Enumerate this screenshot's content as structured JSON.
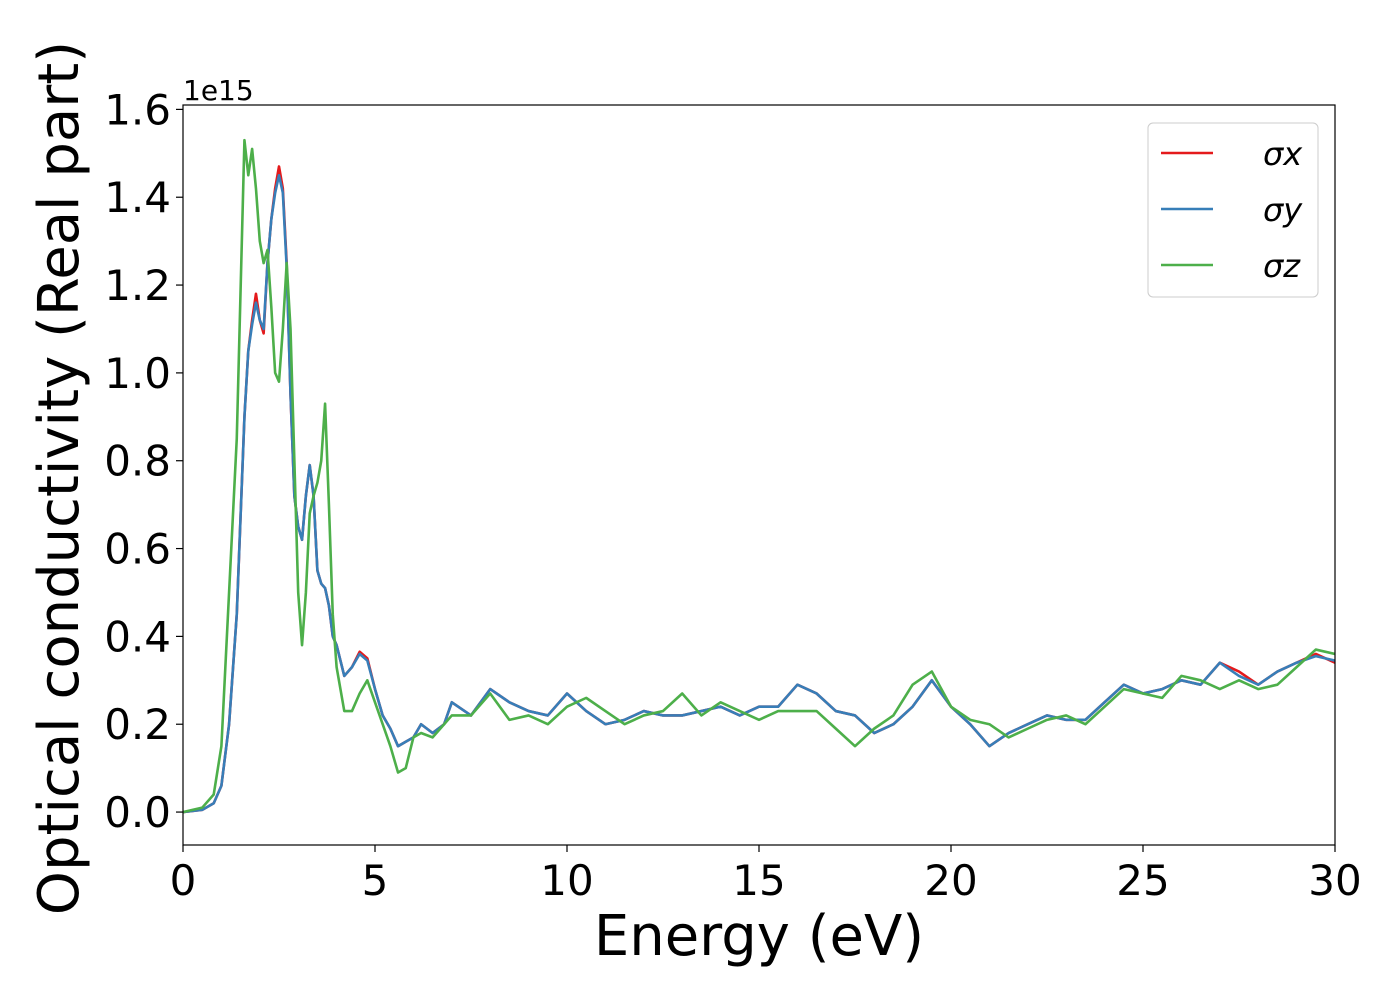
{
  "chart_data": {
    "type": "line",
    "xlabel": "Energy (eV)",
    "ylabel": "Optical conductivity (Real part)",
    "y_offset_label": "1e15",
    "xlim": [
      0,
      30
    ],
    "ylim": [
      -0.075,
      1.61
    ],
    "xticks": [
      0,
      5,
      10,
      15,
      20,
      25,
      30
    ],
    "yticks": [
      {
        "value": 0,
        "label": "0.0"
      },
      0.2,
      0.4,
      0.6,
      0.8,
      {
        "value": 1,
        "label": "1.0"
      },
      1.2,
      1.4,
      1.6
    ],
    "legend": "upper right",
    "x": [
      0,
      0.5,
      0.8,
      1.0,
      1.2,
      1.4,
      1.6,
      1.7,
      1.8,
      1.9,
      2.0,
      2.1,
      2.2,
      2.3,
      2.4,
      2.5,
      2.6,
      2.7,
      2.8,
      2.9,
      3.0,
      3.1,
      3.2,
      3.3,
      3.4,
      3.5,
      3.6,
      3.7,
      3.8,
      3.9,
      4.0,
      4.2,
      4.4,
      4.6,
      4.8,
      5.0,
      5.2,
      5.4,
      5.6,
      5.8,
      6.0,
      6.2,
      6.5,
      6.8,
      7.0,
      7.5,
      8.0,
      8.5,
      9.0,
      9.5,
      10,
      10.5,
      11,
      11.5,
      12,
      12.5,
      13,
      13.5,
      14,
      14.5,
      15,
      15.5,
      16,
      16.5,
      17,
      17.5,
      18,
      18.5,
      19,
      19.5,
      20,
      20.5,
      21,
      21.5,
      22,
      22.5,
      23,
      23.5,
      24,
      24.5,
      25,
      25.5,
      26,
      26.5,
      27,
      27.5,
      28,
      28.5,
      29,
      29.5,
      30
    ],
    "series": [
      {
        "name": "σx",
        "color": "#e41a1c",
        "values": [
          0,
          0.005,
          0.02,
          0.06,
          0.2,
          0.45,
          0.9,
          1.05,
          1.12,
          1.18,
          1.12,
          1.09,
          1.25,
          1.35,
          1.42,
          1.47,
          1.42,
          1.25,
          0.95,
          0.72,
          0.65,
          0.62,
          0.72,
          0.79,
          0.72,
          0.55,
          0.52,
          0.51,
          0.47,
          0.4,
          0.38,
          0.31,
          0.33,
          0.365,
          0.35,
          0.28,
          0.22,
          0.19,
          0.15,
          0.16,
          0.17,
          0.2,
          0.18,
          0.2,
          0.25,
          0.22,
          0.28,
          0.25,
          0.23,
          0.22,
          0.27,
          0.23,
          0.2,
          0.21,
          0.23,
          0.22,
          0.22,
          0.23,
          0.24,
          0.22,
          0.24,
          0.24,
          0.29,
          0.27,
          0.23,
          0.22,
          0.18,
          0.2,
          0.24,
          0.3,
          0.24,
          0.2,
          0.15,
          0.18,
          0.2,
          0.22,
          0.21,
          0.21,
          0.25,
          0.29,
          0.27,
          0.28,
          0.3,
          0.29,
          0.34,
          0.32,
          0.29,
          0.32,
          0.34,
          0.36,
          0.34
        ]
      },
      {
        "name": "σy",
        "color": "#377eb8",
        "values": [
          0,
          0.005,
          0.02,
          0.06,
          0.2,
          0.45,
          0.9,
          1.05,
          1.11,
          1.16,
          1.12,
          1.1,
          1.25,
          1.35,
          1.41,
          1.45,
          1.41,
          1.24,
          0.95,
          0.72,
          0.65,
          0.62,
          0.72,
          0.79,
          0.72,
          0.55,
          0.52,
          0.51,
          0.47,
          0.4,
          0.38,
          0.31,
          0.33,
          0.36,
          0.345,
          0.28,
          0.22,
          0.19,
          0.15,
          0.16,
          0.17,
          0.2,
          0.18,
          0.2,
          0.25,
          0.22,
          0.28,
          0.25,
          0.23,
          0.22,
          0.27,
          0.23,
          0.2,
          0.21,
          0.23,
          0.22,
          0.22,
          0.23,
          0.24,
          0.22,
          0.24,
          0.24,
          0.29,
          0.27,
          0.23,
          0.22,
          0.18,
          0.2,
          0.24,
          0.3,
          0.24,
          0.2,
          0.15,
          0.18,
          0.2,
          0.22,
          0.21,
          0.21,
          0.25,
          0.29,
          0.27,
          0.28,
          0.3,
          0.29,
          0.34,
          0.31,
          0.29,
          0.32,
          0.34,
          0.355,
          0.345
        ]
      },
      {
        "name": "σz",
        "color": "#4daf4a",
        "values": [
          0,
          0.01,
          0.04,
          0.15,
          0.5,
          0.85,
          1.53,
          1.45,
          1.51,
          1.42,
          1.3,
          1.25,
          1.28,
          1.15,
          1.0,
          0.98,
          1.1,
          1.25,
          1.1,
          0.8,
          0.5,
          0.38,
          0.5,
          0.68,
          0.72,
          0.75,
          0.8,
          0.93,
          0.7,
          0.45,
          0.33,
          0.23,
          0.23,
          0.27,
          0.3,
          0.25,
          0.2,
          0.15,
          0.09,
          0.1,
          0.17,
          0.18,
          0.17,
          0.2,
          0.22,
          0.22,
          0.27,
          0.21,
          0.22,
          0.2,
          0.24,
          0.26,
          0.23,
          0.2,
          0.22,
          0.23,
          0.27,
          0.22,
          0.25,
          0.23,
          0.21,
          0.23,
          0.23,
          0.23,
          0.19,
          0.15,
          0.19,
          0.22,
          0.29,
          0.32,
          0.24,
          0.21,
          0.2,
          0.17,
          0.19,
          0.21,
          0.22,
          0.2,
          0.24,
          0.28,
          0.27,
          0.26,
          0.31,
          0.3,
          0.28,
          0.3,
          0.28,
          0.29,
          0.33,
          0.37,
          0.36
        ]
      }
    ]
  }
}
